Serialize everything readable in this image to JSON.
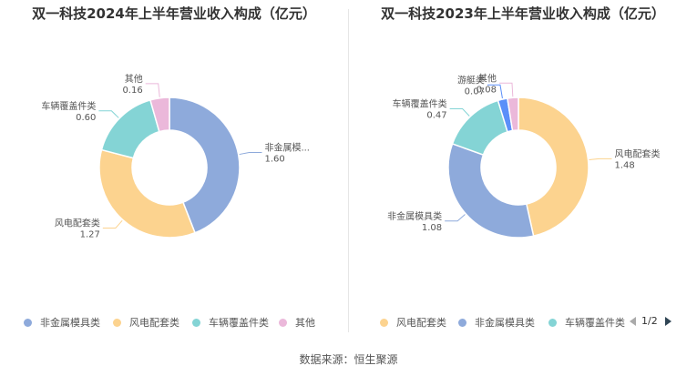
{
  "chart_data": [
    {
      "type": "pie",
      "title": "双一科技2024年上半年营业收入构成（亿元）",
      "slices": [
        {
          "name": "非金属模具类",
          "label": "非金属模...",
          "value": 1.6,
          "color": "#8eaadb"
        },
        {
          "name": "风电配套类",
          "label": "风电配套类",
          "value": 1.27,
          "color": "#fcd38f"
        },
        {
          "name": "车辆覆盖件类",
          "label": "车辆覆盖件类",
          "value": 0.6,
          "color": "#84d4d5"
        },
        {
          "name": "其他",
          "label": "其他",
          "value": 0.16,
          "color": "#ebb8da"
        }
      ],
      "legend": [
        "非金属模具类",
        "风电配套类",
        "车辆覆盖件类",
        "其他"
      ]
    },
    {
      "type": "pie",
      "title": "双一科技2023年上半年营业收入构成（亿元）",
      "slices": [
        {
          "name": "风电配套类",
          "label": "风电配套类",
          "value": 1.48,
          "color": "#fcd38f"
        },
        {
          "name": "非金属模具类",
          "label": "非金属模具类",
          "value": 1.08,
          "color": "#8eaadb"
        },
        {
          "name": "车辆覆盖件类",
          "label": "车辆覆盖件类",
          "value": 0.47,
          "color": "#84d4d5"
        },
        {
          "name": "游艇类",
          "label": "游艇类",
          "value": 0.07,
          "color": "#5b8ff9"
        },
        {
          "name": "其他",
          "label": "其他",
          "value": 0.08,
          "color": "#ebb8da"
        }
      ],
      "legend": [
        "风电配套类",
        "非金属模具类",
        "车辆覆盖件类"
      ],
      "legend_page": "1/2"
    }
  ],
  "legend_colors": {
    "非金属模具类": "#8eaadb",
    "风电配套类": "#fcd38f",
    "车辆覆盖件类": "#84d4d5",
    "其他": "#ebb8da"
  },
  "source": "数据来源：恒生聚源"
}
